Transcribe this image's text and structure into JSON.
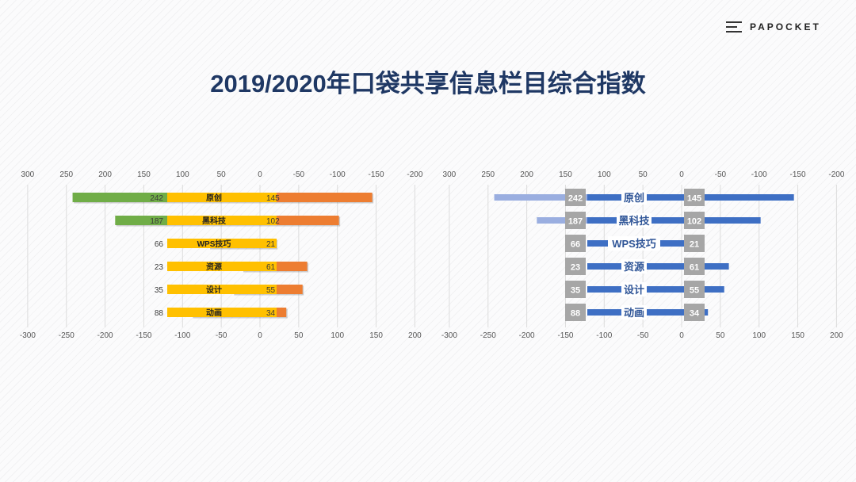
{
  "brand": {
    "name": "PAPOCKET",
    "icon": "menu-icon"
  },
  "title": "2019/2020年口袋共享信息栏目综合指数",
  "chart_data": [
    {
      "type": "bar",
      "style": "butterfly",
      "categories": [
        "原创",
        "黑科技",
        "WPS技巧",
        "资源",
        "设计",
        "动画"
      ],
      "series": [
        {
          "name": "2019",
          "values": [
            242,
            187,
            66,
            23,
            35,
            88
          ],
          "color": "#70ad47"
        },
        {
          "name": "2020",
          "values": [
            145,
            102,
            21,
            61,
            55,
            34
          ],
          "color": "#ed7d31"
        }
      ],
      "label_band_color": "#ffc000",
      "top_ticks": [
        "300",
        "250",
        "200",
        "150",
        "100",
        "50",
        "0",
        "-50",
        "-100",
        "-150",
        "-200"
      ],
      "bottom_ticks": [
        "-300",
        "-250",
        "-200",
        "-150",
        "-100",
        "-50",
        "0",
        "50",
        "100",
        "150",
        "200"
      ],
      "xlim": [
        -300,
        200
      ],
      "grid": true
    },
    {
      "type": "bar",
      "style": "butterfly",
      "categories": [
        "原创",
        "黑科技",
        "WPS技巧",
        "资源",
        "设计",
        "动画"
      ],
      "series": [
        {
          "name": "2019",
          "values": [
            242,
            187,
            66,
            23,
            35,
            88
          ],
          "color": "#9aaee0"
        },
        {
          "name": "2020",
          "values": [
            145,
            102,
            21,
            61,
            55,
            34
          ],
          "color": "#3e6fc4"
        }
      ],
      "label_box_color": "#a6a6a6",
      "category_color": "#2f5597",
      "top_ticks": [
        "300",
        "250",
        "200",
        "150",
        "100",
        "50",
        "0",
        "-50",
        "-100",
        "-150",
        "-200"
      ],
      "bottom_ticks": [
        "-300",
        "-250",
        "-200",
        "-150",
        "-100",
        "-50",
        "0",
        "50",
        "100",
        "150",
        "200"
      ],
      "xlim": [
        -300,
        200
      ],
      "grid": true
    }
  ]
}
